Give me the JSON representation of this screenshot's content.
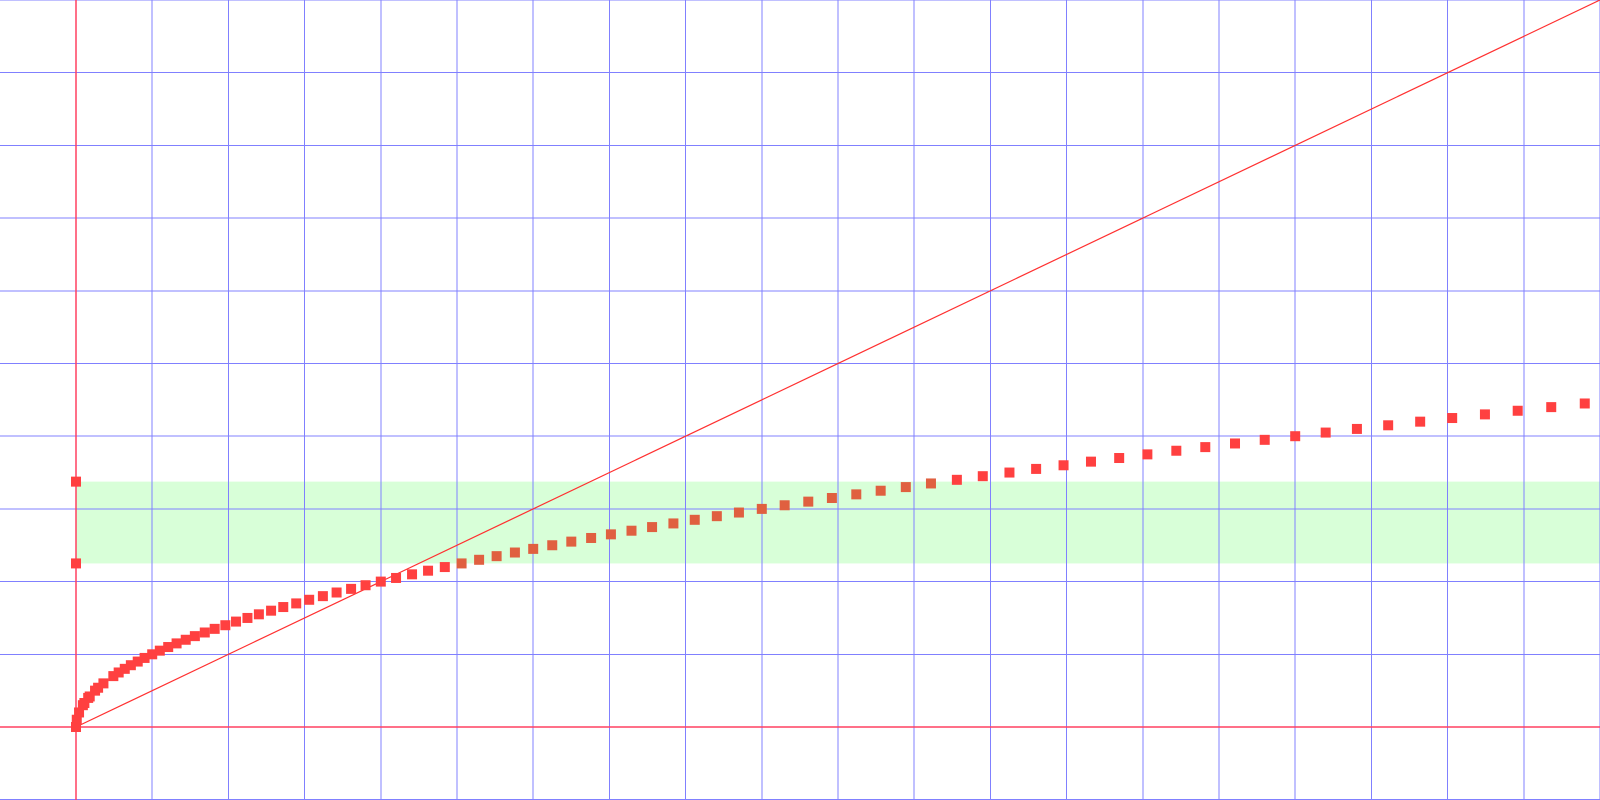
{
  "chart_data": {
    "type": "scatter",
    "title": "",
    "xlabel": "",
    "ylabel": "",
    "xlim": [
      -1,
      20
    ],
    "ylim": [
      -1,
      10
    ],
    "grid": true,
    "grid_step": 1,
    "colors": {
      "grid": "#8080ff",
      "axes": "#ff4060",
      "line": "#ff3030",
      "points": "#ff4040",
      "points_in_band": "#e06040",
      "band": "#d8ffd8"
    },
    "band": {
      "y_from": 2.25,
      "y_to": 3.375
    },
    "band_markers": [
      {
        "x": 0,
        "y": 2.25
      },
      {
        "x": 0,
        "y": 3.375
      }
    ],
    "line": {
      "x": [
        0,
        20
      ],
      "y": [
        0,
        10
      ]
    },
    "series": [
      {
        "values": [
          [
            0,
            0
          ],
          [
            0.01,
            0.1
          ],
          [
            0.04,
            0.2
          ],
          [
            0.09,
            0.3
          ],
          [
            0.16,
            0.4
          ],
          [
            0.25,
            0.5
          ],
          [
            0.36,
            0.6
          ],
          [
            0.49,
            0.7
          ],
          [
            0.64,
            0.8
          ],
          [
            0.81,
            0.9
          ],
          [
            1.0,
            1.0
          ],
          [
            1.21,
            1.1
          ],
          [
            1.44,
            1.2
          ],
          [
            1.69,
            1.3
          ],
          [
            1.96,
            1.4
          ],
          [
            2.25,
            1.5
          ],
          [
            2.56,
            1.6
          ],
          [
            2.89,
            1.7
          ],
          [
            3.24,
            1.8
          ],
          [
            3.61,
            1.9
          ],
          [
            4.0,
            2.0
          ],
          [
            4.41,
            2.1
          ],
          [
            4.84,
            2.2
          ],
          [
            5.29,
            2.3
          ],
          [
            5.76,
            2.4
          ],
          [
            6.25,
            2.5
          ],
          [
            6.76,
            2.6
          ],
          [
            7.29,
            2.7
          ],
          [
            7.84,
            2.8
          ],
          [
            8.41,
            2.9
          ],
          [
            9.0,
            3.0
          ],
          [
            9.61,
            3.1
          ],
          [
            10.24,
            3.2
          ],
          [
            10.89,
            3.3
          ],
          [
            11.56,
            3.4
          ],
          [
            12.25,
            3.5
          ],
          [
            12.96,
            3.6
          ],
          [
            13.69,
            3.7
          ],
          [
            14.44,
            3.8
          ],
          [
            15.21,
            3.9
          ],
          [
            16.0,
            4.0
          ],
          [
            16.81,
            4.1
          ],
          [
            17.64,
            4.2
          ],
          [
            18.49,
            4.3
          ],
          [
            19.36,
            4.4
          ],
          [
            0.11,
            0.33
          ],
          [
            0.18,
            0.42
          ],
          [
            0.29,
            0.54
          ],
          [
            0.56,
            0.75
          ],
          [
            0.72,
            0.85
          ],
          [
            0.9,
            0.95
          ],
          [
            1.1,
            1.05
          ],
          [
            1.32,
            1.15
          ],
          [
            1.56,
            1.25
          ],
          [
            1.82,
            1.35
          ],
          [
            2.1,
            1.45
          ],
          [
            2.4,
            1.55
          ],
          [
            2.72,
            1.65
          ],
          [
            3.06,
            1.75
          ],
          [
            3.42,
            1.85
          ],
          [
            3.8,
            1.95
          ],
          [
            4.2,
            2.05
          ],
          [
            4.62,
            2.15
          ],
          [
            5.06,
            2.25
          ],
          [
            5.52,
            2.35
          ],
          [
            6.0,
            2.45
          ],
          [
            6.5,
            2.55
          ],
          [
            7.02,
            2.65
          ],
          [
            7.56,
            2.75
          ],
          [
            8.12,
            2.85
          ],
          [
            8.7,
            2.95
          ],
          [
            9.3,
            3.05
          ],
          [
            9.92,
            3.15
          ],
          [
            10.56,
            3.25
          ],
          [
            11.22,
            3.35
          ],
          [
            11.9,
            3.45
          ],
          [
            12.6,
            3.55
          ],
          [
            13.32,
            3.65
          ],
          [
            14.06,
            3.75
          ],
          [
            14.82,
            3.85
          ],
          [
            15.6,
            3.95
          ],
          [
            16.4,
            4.05
          ],
          [
            17.22,
            4.15
          ],
          [
            18.06,
            4.25
          ],
          [
            18.92,
            4.35
          ],
          [
            19.8,
            4.45
          ]
        ]
      }
    ]
  }
}
